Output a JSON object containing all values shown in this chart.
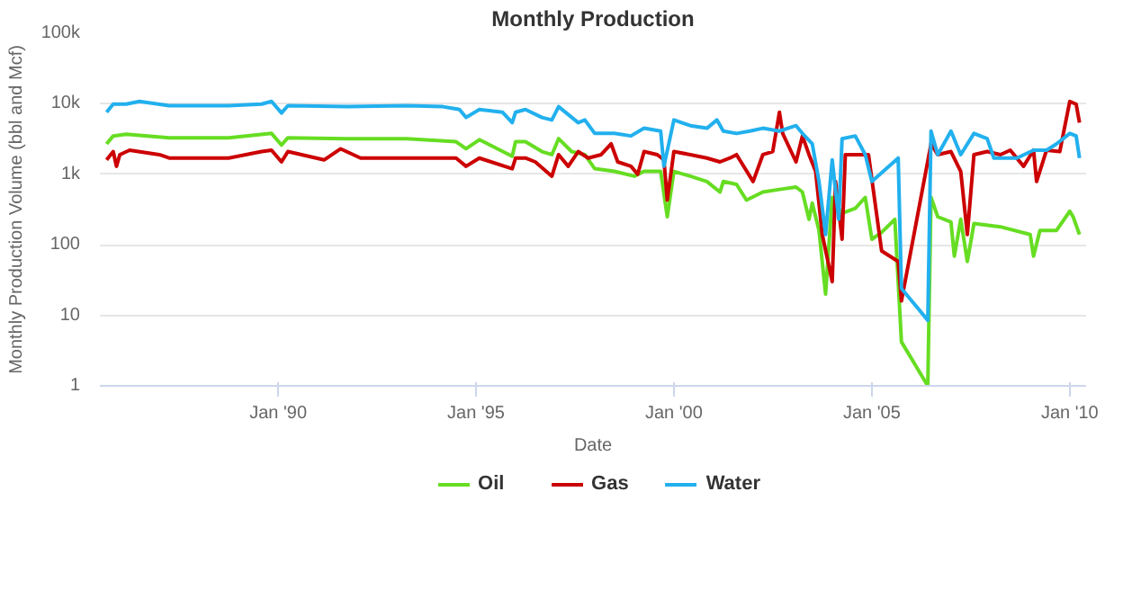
{
  "chart_data": {
    "type": "line",
    "title": "Monthly Production",
    "xlabel": "Date",
    "ylabel": "Monthly Production Volume (bbl and Mcf)",
    "log": true,
    "grid": "y",
    "legend": "bottom",
    "marker": "none",
    "line_style": "solid",
    "xlim": [
      "1985-07",
      "2010-06"
    ],
    "xticks": [
      {
        "value": "1990-01",
        "label": "Jan '90"
      },
      {
        "value": "1995-01",
        "label": "Jan '95"
      },
      {
        "value": "2000-01",
        "label": "Jan '00"
      },
      {
        "value": "2005-01",
        "label": "Jan '05"
      },
      {
        "value": "2010-01",
        "label": "Jan '10"
      }
    ],
    "ylim": [
      1,
      100000
    ],
    "yticks": [
      1,
      10,
      100,
      {
        "value": 1000,
        "label": "1k"
      },
      {
        "value": 10000,
        "label": "10k"
      },
      {
        "value": 100000,
        "label": "100k"
      }
    ],
    "series": [
      {
        "name": "Oil",
        "color": "#66dd22",
        "x": [
          "1985-09",
          "1985-11",
          "1986-03",
          "1987-04",
          "1988-10",
          "1989-11",
          "1990-02",
          "1990-04",
          "1991-10",
          "1993-04",
          "1994-07",
          "1994-10",
          "1995-02",
          "1995-12",
          "1996-01",
          "1996-04",
          "1996-09",
          "1996-12",
          "1997-02",
          "1997-06",
          "1997-10",
          "1998-01",
          "1998-07",
          "1999-01",
          "1999-04",
          "1999-09",
          "1999-11",
          "2000-01",
          "2000-06",
          "2000-11",
          "2001-03",
          "2001-04",
          "2001-08",
          "2001-11",
          "2002-04",
          "2002-09",
          "2003-02",
          "2003-04",
          "2003-06",
          "2003-07",
          "2003-09",
          "2003-11",
          "2004-01",
          "2004-03",
          "2004-04",
          "2004-08",
          "2004-11",
          "2005-01",
          "2005-04",
          "2005-08",
          "2005-10",
          "2006-06",
          "2006-07",
          "2006-09",
          "2007-01",
          "2007-02",
          "2007-04",
          "2007-06",
          "2007-08",
          "2008-04",
          "2009-01",
          "2009-02",
          "2009-04",
          "2009-09",
          "2010-01",
          "2010-02",
          "2010-04"
        ],
        "values": [
          2700,
          3500,
          3700,
          3300,
          3300,
          3800,
          2600,
          3300,
          3200,
          3200,
          2900,
          2300,
          3100,
          1800,
          2900,
          2900,
          2100,
          1900,
          3200,
          2100,
          1900,
          1200,
          1100,
          940,
          1100,
          1100,
          250,
          1100,
          940,
          790,
          560,
          790,
          720,
          430,
          560,
          610,
          660,
          560,
          230,
          390,
          160,
          20,
          470,
          330,
          280,
          330,
          470,
          120,
          150,
          230,
          4.2,
          1,
          470,
          250,
          210,
          69,
          230,
          58,
          200,
          180,
          140,
          69,
          160,
          160,
          300,
          250,
          140
        ]
      },
      {
        "name": "Gas",
        "color": "#cc0000",
        "x": [
          "1985-09",
          "1985-11",
          "1985-12",
          "1986-01",
          "1986-04",
          "1987-01",
          "1987-04",
          "1988-10",
          "1989-08",
          "1989-11",
          "1990-02",
          "1990-04",
          "1991-03",
          "1991-08",
          "1992-02",
          "1993-04",
          "1994-07",
          "1994-10",
          "1995-02",
          "1995-12",
          "1996-01",
          "1996-04",
          "1996-07",
          "1996-12",
          "1997-02",
          "1997-05",
          "1997-08",
          "1997-11",
          "1998-03",
          "1998-06",
          "1998-08",
          "1998-12",
          "1999-02",
          "1999-04",
          "1999-08",
          "1999-10",
          "1999-11",
          "2000-01",
          "2000-06",
          "2000-11",
          "2001-03",
          "2001-06",
          "2001-08",
          "2002-01",
          "2002-04",
          "2002-07",
          "2002-09",
          "2002-10",
          "2003-02",
          "2003-04",
          "2003-06",
          "2003-08",
          "2003-10",
          "2004-01",
          "2004-02",
          "2004-04",
          "2004-05",
          "2004-12",
          "2005-04",
          "2005-09",
          "2005-10",
          "2006-07",
          "2006-09",
          "2007-01",
          "2007-04",
          "2007-06",
          "2007-08",
          "2007-12",
          "2008-04",
          "2008-07",
          "2008-11",
          "2009-02",
          "2009-03",
          "2009-06",
          "2009-10",
          "2010-01",
          "2010-03",
          "2010-04"
        ],
        "values": [
          1600,
          2100,
          1300,
          1900,
          2200,
          1900,
          1700,
          1700,
          2100,
          2200,
          1500,
          2100,
          1600,
          2300,
          1700,
          1700,
          1700,
          1300,
          1700,
          1200,
          1700,
          1700,
          1500,
          940,
          1900,
          1300,
          2100,
          1700,
          1900,
          2700,
          1500,
          1300,
          1000,
          2100,
          1900,
          1600,
          430,
          2100,
          1900,
          1700,
          1500,
          1700,
          1900,
          790,
          1900,
          2100,
          7600,
          3800,
          1500,
          3500,
          1900,
          1100,
          140,
          30,
          790,
          120,
          1900,
          1900,
          82,
          58,
          16,
          2700,
          1900,
          2100,
          1100,
          140,
          1900,
          2100,
          1900,
          2200,
          1300,
          2200,
          790,
          2200,
          2100,
          10800,
          9900,
          5400
        ]
      },
      {
        "name": "Water",
        "color": "#22b0ee",
        "x": [
          "1985-09",
          "1985-11",
          "1986-03",
          "1986-07",
          "1987-04",
          "1988-10",
          "1989-08",
          "1989-11",
          "1990-02",
          "1990-04",
          "1991-10",
          "1993-04",
          "1994-03",
          "1994-08",
          "1994-10",
          "1995-02",
          "1995-09",
          "1995-12",
          "1996-01",
          "1996-04",
          "1996-09",
          "1996-12",
          "1997-02",
          "1997-08",
          "1997-10",
          "1998-01",
          "1998-07",
          "1998-12",
          "1999-04",
          "1999-09",
          "1999-10",
          "2000-01",
          "2000-06",
          "2000-11",
          "2001-02",
          "2001-04",
          "2001-08",
          "2001-12",
          "2002-04",
          "2002-09",
          "2003-02",
          "2003-04",
          "2003-07",
          "2003-09",
          "2003-11",
          "2004-01",
          "2004-03",
          "2004-04",
          "2004-08",
          "2004-11",
          "2005-01",
          "2005-09",
          "2005-10",
          "2006-06",
          "2006-07",
          "2006-09",
          "2007-01",
          "2007-04",
          "2007-08",
          "2007-12",
          "2008-02",
          "2008-09",
          "2009-02",
          "2009-06",
          "2009-09",
          "2010-01",
          "2010-03",
          "2010-04"
        ],
        "values": [
          7600,
          9900,
          9900,
          10800,
          9400,
          9400,
          9900,
          10800,
          7400,
          9400,
          9100,
          9400,
          9100,
          8300,
          6400,
          8300,
          7600,
          5400,
          7600,
          8300,
          6400,
          5900,
          9100,
          5400,
          5900,
          3800,
          3800,
          3500,
          4500,
          4100,
          1300,
          5900,
          4900,
          4500,
          5900,
          4100,
          3800,
          4100,
          4500,
          4100,
          4900,
          3800,
          2700,
          790,
          140,
          1600,
          230,
          3200,
          3500,
          1900,
          790,
          1700,
          24,
          8.5,
          4100,
          1900,
          4100,
          1900,
          3800,
          3200,
          1700,
          1700,
          2200,
          2200,
          2700,
          3800,
          3500,
          1700
        ]
      }
    ]
  }
}
